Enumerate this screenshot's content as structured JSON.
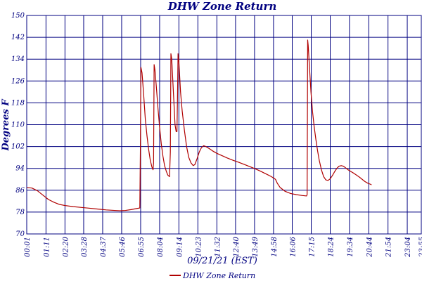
{
  "chart_data": {
    "type": "line",
    "title": "DHW Zone Return",
    "xlabel": "09/21/21 (EST)",
    "ylabel": "Degrees F",
    "ylim": [
      70,
      150
    ],
    "yticks": [
      70,
      78,
      86,
      94,
      102,
      110,
      118,
      126,
      134,
      142,
      150
    ],
    "xlim_minutes": [
      1,
      1435
    ],
    "xticks": [
      {
        "label": "00:01",
        "minute": 1
      },
      {
        "label": "01:11",
        "minute": 71
      },
      {
        "label": "02:20",
        "minute": 140
      },
      {
        "label": "03:28",
        "minute": 208
      },
      {
        "label": "04:37",
        "minute": 277
      },
      {
        "label": "05:46",
        "minute": 346
      },
      {
        "label": "06:55",
        "minute": 415
      },
      {
        "label": "08:04",
        "minute": 484
      },
      {
        "label": "09:14",
        "minute": 554
      },
      {
        "label": "10:23",
        "minute": 623
      },
      {
        "label": "11:32",
        "minute": 692
      },
      {
        "label": "12:40",
        "minute": 760
      },
      {
        "label": "13:49",
        "minute": 829
      },
      {
        "label": "14:58",
        "minute": 898
      },
      {
        "label": "16:06",
        "minute": 966
      },
      {
        "label": "17:15",
        "minute": 1035
      },
      {
        "label": "18:24",
        "minute": 1104
      },
      {
        "label": "19:34",
        "minute": 1174
      },
      {
        "label": "20:44",
        "minute": 1244
      },
      {
        "label": "21:54",
        "minute": 1314
      },
      {
        "label": "23:04",
        "minute": 1384
      },
      {
        "label": "23:55",
        "minute": 1435
      }
    ],
    "grid": true,
    "legend_position": "bottom-center",
    "series": [
      {
        "name": "DHW Zone Return",
        "color": "#b00000",
        "points": [
          [
            1,
            87.0
          ],
          [
            20,
            86.8
          ],
          [
            40,
            85.8
          ],
          [
            60,
            84.2
          ],
          [
            80,
            82.6
          ],
          [
            100,
            81.6
          ],
          [
            120,
            80.8
          ],
          [
            140,
            80.4
          ],
          [
            170,
            80.0
          ],
          [
            200,
            79.7
          ],
          [
            230,
            79.4
          ],
          [
            260,
            79.1
          ],
          [
            290,
            78.8
          ],
          [
            320,
            78.6
          ],
          [
            340,
            78.5
          ],
          [
            360,
            78.6
          ],
          [
            380,
            78.9
          ],
          [
            400,
            79.3
          ],
          [
            412,
            79.5
          ],
          [
            414,
            100.0
          ],
          [
            416,
            131.0
          ],
          [
            420,
            129.0
          ],
          [
            426,
            121.0
          ],
          [
            432,
            112.0
          ],
          [
            438,
            106.0
          ],
          [
            444,
            101.0
          ],
          [
            450,
            97.0
          ],
          [
            456,
            94.5
          ],
          [
            460,
            93.5
          ],
          [
            462,
            96.0
          ],
          [
            464,
            132.0
          ],
          [
            467,
            130.0
          ],
          [
            472,
            124.0
          ],
          [
            478,
            116.0
          ],
          [
            484,
            109.0
          ],
          [
            490,
            103.0
          ],
          [
            496,
            98.5
          ],
          [
            502,
            95.0
          ],
          [
            508,
            93.0
          ],
          [
            514,
            91.5
          ],
          [
            520,
            91.0
          ],
          [
            523,
            100.0
          ],
          [
            525,
            136.0
          ],
          [
            528,
            134.0
          ],
          [
            532,
            126.0
          ],
          [
            536,
            118.0
          ],
          [
            540,
            110.0
          ],
          [
            544,
            107.5
          ],
          [
            547,
            107.5
          ],
          [
            549,
            120.0
          ],
          [
            551,
            136.0
          ],
          [
            554,
            133.0
          ],
          [
            560,
            122.0
          ],
          [
            566,
            115.0
          ],
          [
            574,
            108.0
          ],
          [
            582,
            102.0
          ],
          [
            590,
            98.0
          ],
          [
            598,
            96.0
          ],
          [
            606,
            95.0
          ],
          [
            612,
            95.4
          ],
          [
            620,
            97.5
          ],
          [
            628,
            100.0
          ],
          [
            636,
            101.6
          ],
          [
            644,
            102.3
          ],
          [
            652,
            102.0
          ],
          [
            662,
            101.4
          ],
          [
            675,
            100.5
          ],
          [
            690,
            99.6
          ],
          [
            710,
            98.7
          ],
          [
            730,
            97.8
          ],
          [
            750,
            97.0
          ],
          [
            770,
            96.3
          ],
          [
            790,
            95.5
          ],
          [
            810,
            94.7
          ],
          [
            830,
            93.9
          ],
          [
            850,
            93.0
          ],
          [
            870,
            92.0
          ],
          [
            890,
            91.0
          ],
          [
            905,
            90.0
          ],
          [
            912,
            88.5
          ],
          [
            922,
            87.0
          ],
          [
            940,
            85.6
          ],
          [
            960,
            84.8
          ],
          [
            980,
            84.4
          ],
          [
            1000,
            84.1
          ],
          [
            1018,
            83.9
          ],
          [
            1020,
            84.4
          ],
          [
            1021,
            110.0
          ],
          [
            1022,
            141.0
          ],
          [
            1024,
            139.0
          ],
          [
            1028,
            132.0
          ],
          [
            1034,
            122.0
          ],
          [
            1040,
            114.5
          ],
          [
            1046,
            109.0
          ],
          [
            1052,
            104.5
          ],
          [
            1058,
            100.5
          ],
          [
            1064,
            97.0
          ],
          [
            1072,
            93.5
          ],
          [
            1080,
            91.0
          ],
          [
            1088,
            89.8
          ],
          [
            1096,
            89.6
          ],
          [
            1104,
            90.2
          ],
          [
            1112,
            91.4
          ],
          [
            1120,
            92.8
          ],
          [
            1128,
            94.0
          ],
          [
            1136,
            94.8
          ],
          [
            1144,
            95.0
          ],
          [
            1152,
            94.8
          ],
          [
            1160,
            94.2
          ],
          [
            1170,
            93.4
          ],
          [
            1180,
            92.8
          ],
          [
            1190,
            92.2
          ],
          [
            1200,
            91.5
          ],
          [
            1210,
            90.8
          ],
          [
            1220,
            90.0
          ],
          [
            1230,
            89.2
          ],
          [
            1240,
            88.6
          ],
          [
            1250,
            88.2
          ],
          [
            1254,
            88.0
          ]
        ]
      }
    ]
  }
}
